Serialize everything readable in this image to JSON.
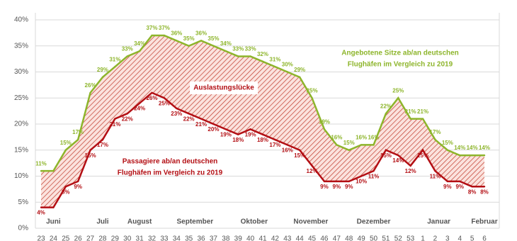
{
  "chart_data": {
    "type": "line",
    "categories": [
      "23",
      "24",
      "25",
      "26",
      "27",
      "28",
      "29",
      "30",
      "31",
      "32",
      "33",
      "34",
      "35",
      "36",
      "37",
      "38",
      "39",
      "40",
      "41",
      "42",
      "43",
      "44",
      "45",
      "46",
      "47",
      "48",
      "49",
      "50",
      "51",
      "52",
      "53",
      "1",
      "2",
      "3",
      "4",
      "5",
      "6"
    ],
    "series": [
      {
        "color": "#8db52b",
        "label_lines": [
          "Angebotene Sitze ab/an deutschen",
          "Flughäfen im Vergleich zu 2019"
        ],
        "values": [
          11,
          11,
          15,
          17,
          26,
          29,
          31,
          33,
          34,
          37,
          37,
          36,
          35,
          36,
          35,
          34,
          33,
          33,
          32,
          31,
          30,
          29,
          25,
          19,
          16,
          15,
          16,
          16,
          22,
          25,
          21,
          21,
          17,
          15,
          14,
          14,
          14
        ],
        "value_labels": [
          "11%",
          null,
          "15%",
          "17%",
          "26%",
          "29%",
          "31%",
          "33%",
          "34%",
          "37%",
          "37%",
          "36%",
          "35%",
          "36%",
          "35%",
          "34%",
          "33%",
          "33%",
          "32%",
          "31%",
          "30%",
          "29%",
          "25%",
          "19%",
          "16%",
          "15%",
          "16%",
          "16%",
          "22%",
          "25%",
          "21%",
          "21%",
          "17%",
          "15%",
          "14%",
          "14%",
          "14%"
        ]
      },
      {
        "color": "#b30f14",
        "label_lines": [
          "Passagiere ab/an deutschen",
          "Flughäfen im Vergleich zu 2019"
        ],
        "values": [
          4,
          4,
          8,
          9,
          15,
          17,
          21,
          22,
          24,
          26,
          25,
          23,
          22,
          21,
          20,
          19,
          18,
          19,
          18,
          17,
          16,
          15,
          12,
          9,
          9,
          9,
          10,
          11,
          15,
          14,
          12,
          15,
          11,
          9,
          9,
          8,
          8
        ],
        "value_labels": [
          "4%",
          null,
          "8%",
          "9%",
          "15%",
          "17%",
          "21%",
          "22%",
          "24%",
          "26%",
          "25%",
          "23%",
          "22%",
          "21%",
          "20%",
          "19%",
          "18%",
          "19%",
          "18%",
          "17%",
          "16%",
          "15%",
          "12%",
          "9%",
          "9%",
          "9%",
          "10%",
          "11%",
          "15%",
          "14%",
          "12%",
          "15%",
          "11%",
          "9%",
          "9%",
          "8%",
          "8%"
        ]
      }
    ],
    "gap_label": "Auslastungslücke",
    "months": [
      "Juni",
      "Juli",
      "August",
      "September",
      "Oktober",
      "November",
      "Dezember",
      "Januar",
      "Februar"
    ],
    "ylim": [
      0,
      40
    ],
    "yticks": [
      {
        "value": 0,
        "label": "0%"
      },
      {
        "value": 5,
        "label": "5%"
      },
      {
        "value": 10,
        "label": "10%"
      },
      {
        "value": 15,
        "label": "15%"
      },
      {
        "value": 20,
        "label": "20%"
      },
      {
        "value": 25,
        "label": "25%"
      },
      {
        "value": 30,
        "label": "30%"
      },
      {
        "value": 35,
        "label": "35%"
      },
      {
        "value": 40,
        "label": "40%"
      }
    ],
    "grid": true
  }
}
